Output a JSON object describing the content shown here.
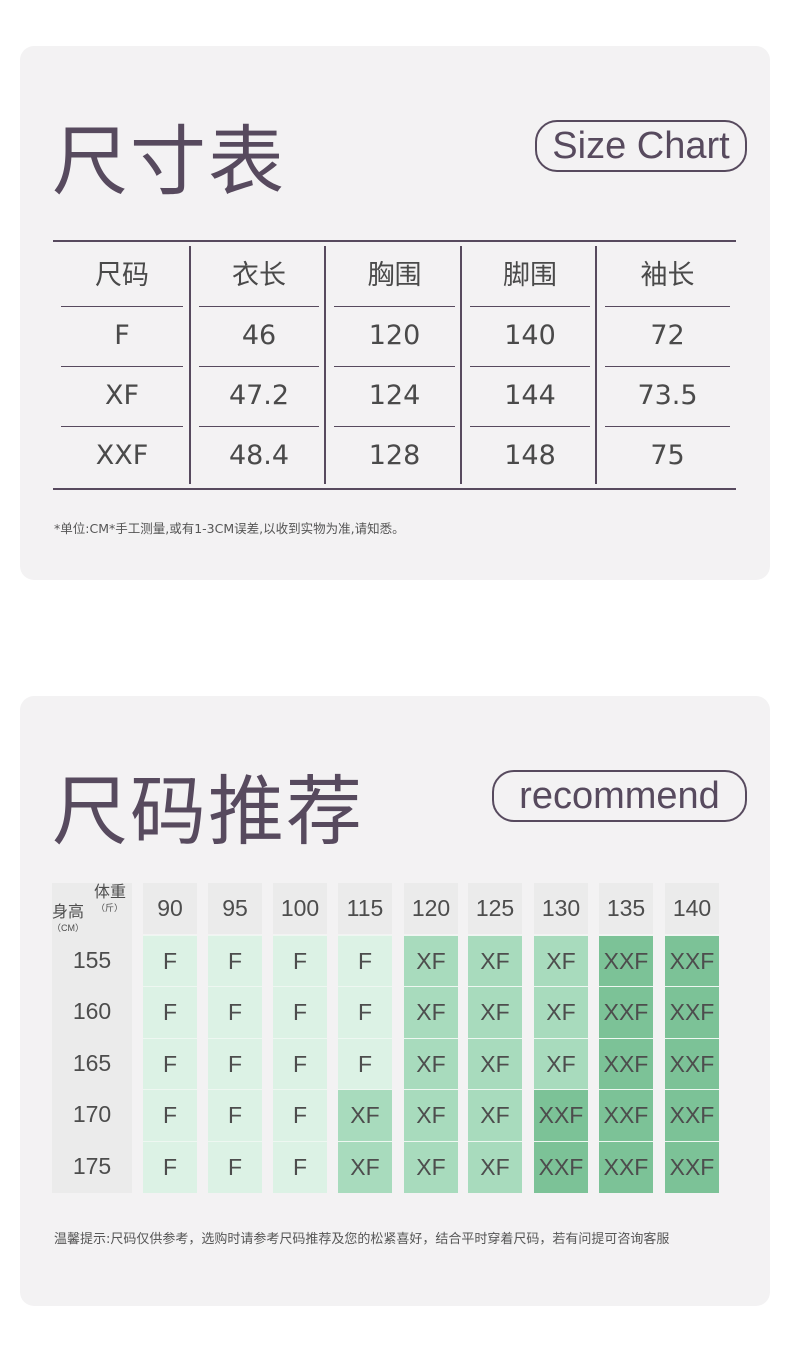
{
  "size_chart": {
    "title": "尺寸表",
    "badge": "Size Chart",
    "headers": [
      "尺码",
      "衣长",
      "胸围",
      "脚围",
      "袖长"
    ],
    "rows": [
      [
        "F",
        "46",
        "120",
        "140",
        "72"
      ],
      [
        "XF",
        "47.2",
        "124",
        "144",
        "73.5"
      ],
      [
        "XXF",
        "48.4",
        "128",
        "148",
        "75"
      ]
    ],
    "note": "*单位:CM*手工测量,或有1-3CM误差,以收到实物为准,请知悉。"
  },
  "recommend": {
    "title": "尺码推荐",
    "badge": "recommend",
    "corner": {
      "weight": "体重",
      "weight_unit": "（斤）",
      "height": "身高",
      "height_unit": "（CM）"
    },
    "weights": [
      "90",
      "95",
      "100",
      "115",
      "120",
      "125",
      "130",
      "135",
      "140"
    ],
    "heights": [
      "155",
      "160",
      "165",
      "170",
      "175"
    ],
    "grid": [
      [
        "F",
        "F",
        "F",
        "F",
        "XF",
        "XF",
        "XF",
        "XXF",
        "XXF"
      ],
      [
        "F",
        "F",
        "F",
        "F",
        "XF",
        "XF",
        "XF",
        "XXF",
        "XXF"
      ],
      [
        "F",
        "F",
        "F",
        "F",
        "XF",
        "XF",
        "XF",
        "XXF",
        "XXF"
      ],
      [
        "F",
        "F",
        "F",
        "XF",
        "XF",
        "XF",
        "XXF",
        "XXF",
        "XXF"
      ],
      [
        "F",
        "F",
        "F",
        "XF",
        "XF",
        "XF",
        "XXF",
        "XXF",
        "XXF"
      ]
    ],
    "colors": {
      "F": "#dcf2e5",
      "XF": "#a8dbbd",
      "XXF": "#7cc297",
      "header": "#ebebeb"
    },
    "note": "温馨提示:尺码仅供参考，选购时请参考尺码推荐及您的松紧喜好，结合平时穿着尺码，若有问提可咨询客服"
  }
}
